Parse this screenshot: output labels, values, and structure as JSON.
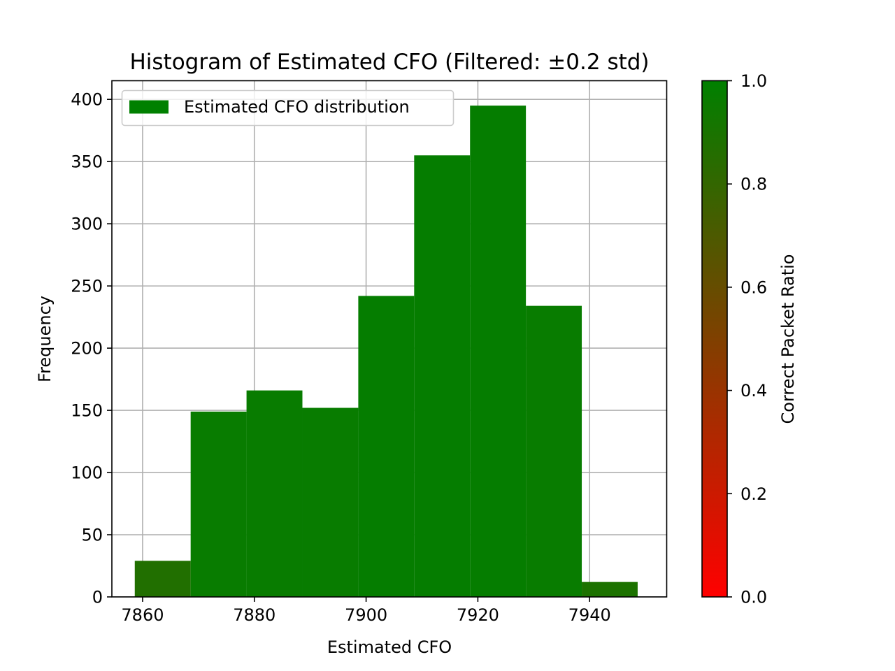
{
  "chart_data": {
    "type": "bar",
    "title": "Histogram of Estimated CFO (Filtered: ±0.2 std)",
    "xlabel": "Estimated CFO",
    "ylabel": "Frequency",
    "xlim": [
      7854.5,
      7953.8
    ],
    "ylim": [
      0,
      415
    ],
    "xticks": [
      7860,
      7880,
      7900,
      7920,
      7940
    ],
    "yticks": [
      0,
      50,
      100,
      150,
      200,
      250,
      300,
      350,
      400
    ],
    "grid": true,
    "legend": {
      "location": "upper-left",
      "entries": [
        "Estimated CFO distribution"
      ]
    },
    "bins": [
      {
        "left": 7858.6,
        "right": 7868.6,
        "count": 29,
        "ratio": 0.87
      },
      {
        "left": 7868.6,
        "right": 7878.6,
        "count": 149,
        "ratio": 0.97
      },
      {
        "left": 7878.6,
        "right": 7888.6,
        "count": 166,
        "ratio": 0.97
      },
      {
        "left": 7888.6,
        "right": 7898.6,
        "count": 152,
        "ratio": 0.97
      },
      {
        "left": 7898.6,
        "right": 7908.6,
        "count": 242,
        "ratio": 0.98
      },
      {
        "left": 7908.6,
        "right": 7918.6,
        "count": 355,
        "ratio": 0.98
      },
      {
        "left": 7918.6,
        "right": 7928.6,
        "count": 395,
        "ratio": 0.98
      },
      {
        "left": 7928.6,
        "right": 7938.6,
        "count": 234,
        "ratio": 0.97
      },
      {
        "left": 7938.6,
        "right": 7948.6,
        "count": 12,
        "ratio": 0.89
      }
    ],
    "colorbar": {
      "label": "Correct Packet Ratio",
      "range": [
        0,
        1
      ],
      "ticks": [
        "0.0",
        "0.2",
        "0.4",
        "0.6",
        "0.8",
        "1.0"
      ],
      "low_color": "#ff0000",
      "high_color": "#008000"
    }
  }
}
